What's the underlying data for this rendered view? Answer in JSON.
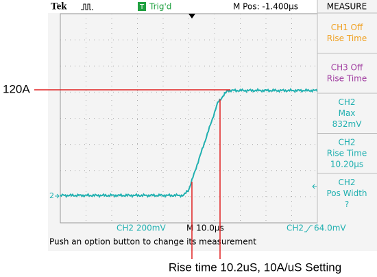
{
  "header": {
    "brand": "Tek",
    "status_icon": "T",
    "status": "Trig'd",
    "position": "M Pos: -1.400µs",
    "menu_title": "MEASURE"
  },
  "menu": [
    {
      "color": "#f0a020",
      "lines": [
        "CH1 Off",
        "Rise Time"
      ]
    },
    {
      "color": "#a03ca0",
      "lines": [
        "CH3 Off",
        "Rise Time"
      ]
    },
    {
      "color": "#20b0b0",
      "lines": [
        "CH2",
        "Max",
        "832mV"
      ]
    },
    {
      "color": "#20b0b0",
      "lines": [
        "CH2",
        "Rise Time",
        "10.20µs"
      ]
    },
    {
      "color": "#20b0b0",
      "lines": [
        "CH2",
        "Pos Width",
        "?"
      ]
    }
  ],
  "trace_marker": "2",
  "footer": {
    "channel_scale": "CH2  200mV",
    "timebase": "M 10.0µs",
    "trigger_channel": "CH2",
    "trigger_level": "64.0mV",
    "message": "Push an option button to change its measurement"
  },
  "annotation": {
    "level_label": "120A",
    "caption": "Rise time 10.2uS, 10A/uS Setting"
  }
}
